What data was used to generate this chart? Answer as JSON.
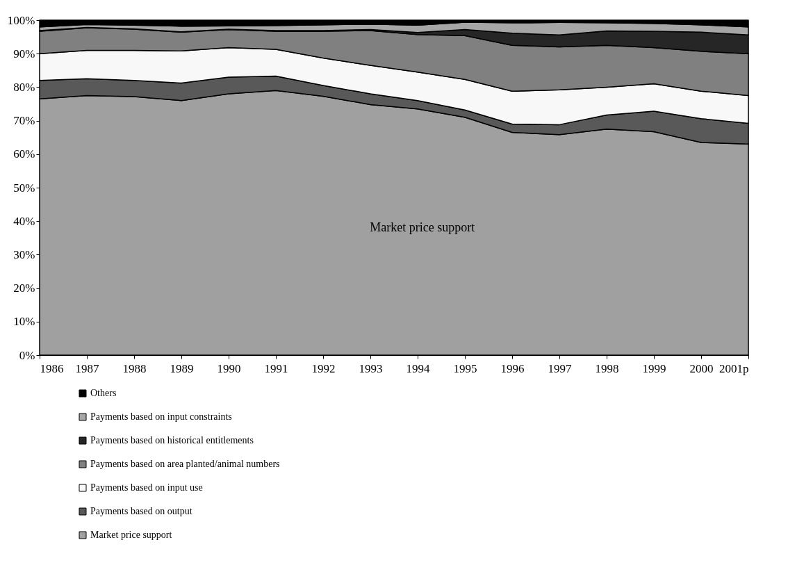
{
  "chart_data": {
    "type": "area",
    "stacked": true,
    "categories": [
      "1986",
      "1987",
      "1988",
      "1989",
      "1990",
      "1991",
      "1992",
      "1993",
      "1994",
      "1995",
      "1996",
      "1997",
      "1998",
      "1999",
      "2000",
      "2001p"
    ],
    "series": [
      {
        "name": "Market price support",
        "color": "#a0a0a0",
        "values": [
          76.5,
          77.5,
          77.2,
          76,
          78,
          79,
          77.3,
          74.8,
          73.5,
          71,
          66.5,
          65.8,
          67.5,
          66.7,
          63.5,
          63
        ]
      },
      {
        "name": "Payments based on output",
        "color": "#595959",
        "values": [
          5.5,
          5,
          4.8,
          5.2,
          5,
          4.3,
          3.2,
          3.2,
          2.5,
          2.2,
          2.5,
          3,
          4.2,
          6.1,
          7.1,
          6.2
        ]
      },
      {
        "name": "Payments based on input use",
        "color": "#f8f8f8",
        "values": [
          8,
          8.5,
          9,
          9.6,
          8.8,
          8,
          8.2,
          8.5,
          8.5,
          9.1,
          9.8,
          10.4,
          8.3,
          8.2,
          8.2,
          8.3
        ]
      },
      {
        "name": "Payments based on area planted/animal numbers",
        "color": "#808080",
        "values": [
          6.7,
          6.7,
          6.3,
          5.6,
          5.4,
          5.4,
          8,
          10.4,
          11.2,
          13.1,
          13.7,
          12.8,
          12.5,
          10.8,
          11.9,
          12.5
        ]
      },
      {
        "name": "Payments based on historical entitlements",
        "color": "#262626",
        "values": [
          0.2,
          0.1,
          0.1,
          0.1,
          0.1,
          0.2,
          0.2,
          0.3,
          0.6,
          1.8,
          3.6,
          3.6,
          4.3,
          4.9,
          5.7,
          5.6
        ]
      },
      {
        "name": "Payments based on input constraints",
        "color": "#a6a6a6",
        "values": [
          1.1,
          0.9,
          1.1,
          1.7,
          1,
          1.5,
          1.7,
          1.6,
          2.2,
          2.2,
          3.1,
          3.7,
          2.4,
          2.3,
          2.2,
          2.4
        ]
      },
      {
        "name": "Others",
        "color": "#000000",
        "values": [
          2,
          1.3,
          1.5,
          1.8,
          1.7,
          1.6,
          1.4,
          1.2,
          1.5,
          0.6,
          0.8,
          0.7,
          0.8,
          1,
          1.4,
          2
        ]
      }
    ],
    "ylim": [
      0,
      100
    ],
    "yticks": [
      {
        "value": 0,
        "label": "0%"
      },
      {
        "value": 10,
        "label": "10%"
      },
      {
        "value": 20,
        "label": "20%"
      },
      {
        "value": 30,
        "label": "30%"
      },
      {
        "value": 40,
        "label": "40%"
      },
      {
        "value": 50,
        "label": "50%"
      },
      {
        "value": 60,
        "label": "60%"
      },
      {
        "value": 70,
        "label": "70%"
      },
      {
        "value": 80,
        "label": "80%"
      },
      {
        "value": 90,
        "label": "90%"
      },
      {
        "value": 100,
        "label": "100%"
      }
    ],
    "legend": "bottom left",
    "annotations": [
      "Market price support"
    ]
  }
}
